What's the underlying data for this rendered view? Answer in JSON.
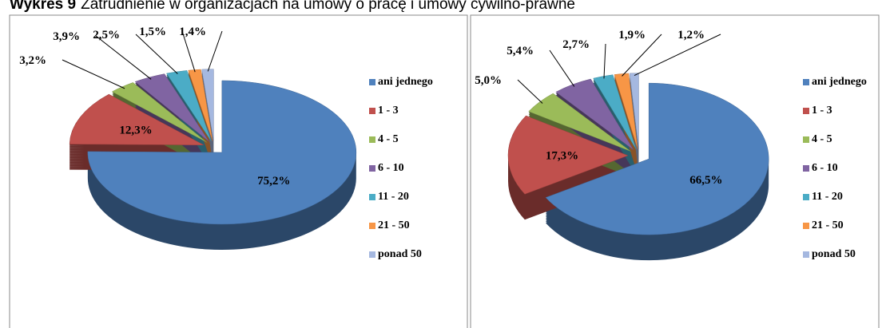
{
  "title_label": "Wykres 9",
  "title": "Zatrudnienie w organizacjach na  umowy o pracę i umowy cywilno-prawne",
  "chart_data": [
    {
      "type": "pie",
      "categories": [
        "ani jednego",
        "1 - 3",
        "4 - 5",
        "6 - 10",
        "11 - 20",
        "21 - 50",
        "ponad 50"
      ],
      "values": [
        75.2,
        12.3,
        3.2,
        3.9,
        2.5,
        1.5,
        1.4
      ],
      "value_labels": [
        "75,2%",
        "12,3%",
        "3,2%",
        "3,9%",
        "2,5%",
        "1,5%",
        "1,4%"
      ],
      "colors": [
        "#4f81bd",
        "#c0504d",
        "#9bbb59",
        "#8064a2",
        "#4bacc6",
        "#f79646",
        "#a5b8e0"
      ],
      "legend": "right"
    },
    {
      "type": "pie",
      "categories": [
        "ani jednego",
        "1 - 3",
        "4 - 5",
        "6 - 10",
        "11 - 20",
        "21 - 50",
        "ponad 50"
      ],
      "values": [
        66.5,
        17.3,
        5.0,
        5.4,
        2.7,
        1.9,
        1.2
      ],
      "value_labels": [
        "66,5%",
        "17,3%",
        "5,0%",
        "5,4%",
        "2,7%",
        "1,9%",
        "1,2%"
      ],
      "colors": [
        "#4f81bd",
        "#c0504d",
        "#9bbb59",
        "#8064a2",
        "#4bacc6",
        "#f79646",
        "#a5b8e0"
      ],
      "legend": "right"
    }
  ]
}
